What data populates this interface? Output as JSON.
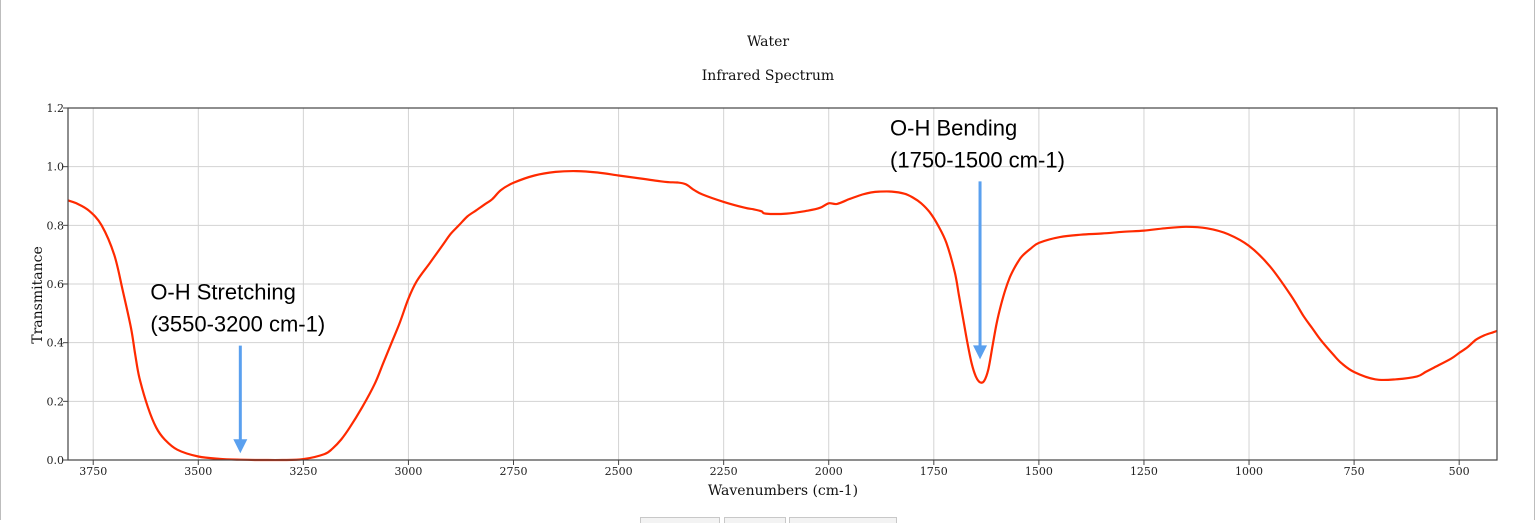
{
  "chart_data": {
    "type": "line",
    "title": "Water",
    "subtitle": "Infrared Spectrum",
    "xlabel": "Wavenumbers (cm-1)",
    "ylabel": "Transmitance",
    "xlim": [
      3810,
      410
    ],
    "ylim": [
      0,
      1.2
    ],
    "x_reversed": true,
    "grid": true,
    "x_ticks": [
      3750,
      3500,
      3250,
      3000,
      2750,
      2500,
      2250,
      2000,
      1750,
      1500,
      1250,
      1000,
      750,
      500
    ],
    "y_ticks": [
      0.0,
      0.2,
      0.4,
      0.6,
      0.8,
      1.0,
      1.2
    ],
    "series": [
      {
        "color": "#ff2a00",
        "x": [
          3810,
          3790,
          3760,
          3730,
          3700,
          3680,
          3660,
          3650,
          3640,
          3620,
          3600,
          3580,
          3550,
          3500,
          3450,
          3400,
          3350,
          3300,
          3250,
          3200,
          3180,
          3160,
          3140,
          3110,
          3080,
          3060,
          3040,
          3020,
          3000,
          2980,
          2950,
          2920,
          2900,
          2880,
          2860,
          2840,
          2820,
          2800,
          2780,
          2750,
          2700,
          2650,
          2600,
          2550,
          2500,
          2450,
          2400,
          2380,
          2360,
          2340,
          2320,
          2300,
          2250,
          2200,
          2180,
          2160,
          2150,
          2100,
          2050,
          2020,
          2000,
          1980,
          1950,
          1920,
          1900,
          1880,
          1850,
          1820,
          1800,
          1780,
          1760,
          1740,
          1720,
          1700,
          1690,
          1680,
          1670,
          1660,
          1650,
          1640,
          1630,
          1620,
          1610,
          1600,
          1590,
          1580,
          1570,
          1560,
          1550,
          1540,
          1520,
          1500,
          1450,
          1400,
          1350,
          1300,
          1250,
          1200,
          1150,
          1100,
          1050,
          1000,
          950,
          900,
          870,
          850,
          830,
          800,
          780,
          750,
          700,
          650,
          600,
          580,
          560,
          520,
          500,
          480,
          460,
          440,
          420,
          410
        ],
        "y": [
          0.885,
          0.875,
          0.85,
          0.8,
          0.7,
          0.58,
          0.45,
          0.36,
          0.28,
          0.18,
          0.11,
          0.07,
          0.035,
          0.012,
          0.004,
          0.001,
          0.0,
          0.0,
          0.003,
          0.02,
          0.04,
          0.07,
          0.11,
          0.18,
          0.26,
          0.33,
          0.4,
          0.47,
          0.55,
          0.61,
          0.67,
          0.73,
          0.77,
          0.8,
          0.83,
          0.85,
          0.87,
          0.89,
          0.92,
          0.945,
          0.97,
          0.982,
          0.985,
          0.98,
          0.97,
          0.96,
          0.95,
          0.947,
          0.946,
          0.94,
          0.92,
          0.905,
          0.88,
          0.86,
          0.855,
          0.848,
          0.84,
          0.84,
          0.85,
          0.86,
          0.875,
          0.873,
          0.89,
          0.905,
          0.912,
          0.915,
          0.915,
          0.908,
          0.895,
          0.875,
          0.845,
          0.8,
          0.74,
          0.64,
          0.56,
          0.48,
          0.4,
          0.33,
          0.285,
          0.265,
          0.27,
          0.31,
          0.39,
          0.47,
          0.53,
          0.58,
          0.62,
          0.65,
          0.675,
          0.695,
          0.72,
          0.74,
          0.76,
          0.768,
          0.772,
          0.778,
          0.782,
          0.79,
          0.795,
          0.79,
          0.77,
          0.73,
          0.66,
          0.56,
          0.49,
          0.45,
          0.41,
          0.36,
          0.33,
          0.3,
          0.275,
          0.275,
          0.285,
          0.3,
          0.315,
          0.345,
          0.365,
          0.385,
          0.41,
          0.425,
          0.435,
          0.44
        ]
      }
    ],
    "annotations": [
      {
        "lines": [
          "O-H Stretching",
          "(3550-3200 cm-1)"
        ],
        "arrow_x": 3400,
        "arrow_from_y": 0.39,
        "arrow_to_y": 0.03
      },
      {
        "lines": [
          "O-H Bending",
          "(1750-1500 cm-1)"
        ],
        "arrow_x": 1640,
        "arrow_from_y": 0.95,
        "arrow_to_y": 0.35
      }
    ],
    "arrow_color": "#5aa0ef"
  }
}
